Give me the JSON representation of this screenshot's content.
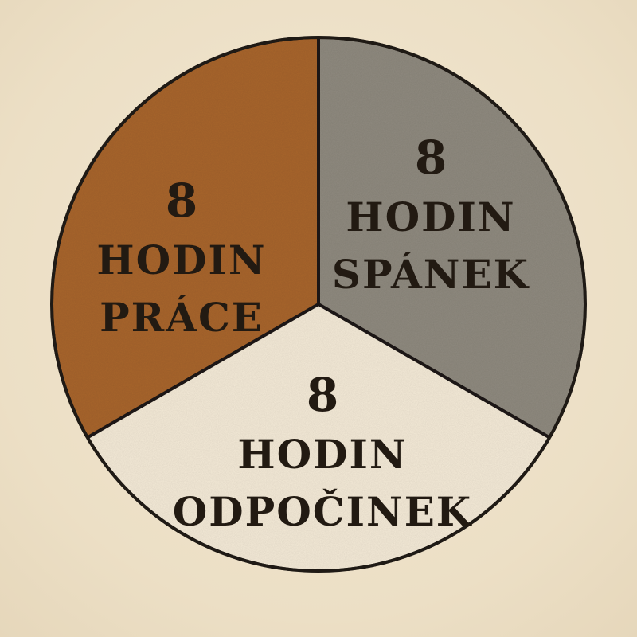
{
  "chart_data": {
    "type": "pie",
    "title": "",
    "slices": [
      {
        "value": 8,
        "unit": "HODIN",
        "label": "PRÁCE",
        "color": "#a8652c"
      },
      {
        "value": 8,
        "unit": "HODIN",
        "label": "SPÁNEK",
        "color": "#8f8a7f"
      },
      {
        "value": 8,
        "unit": "HODIN",
        "label": "ODPOČINEK",
        "color": "#f4ead7"
      }
    ],
    "start_angle_deg": 0,
    "direction": "clockwise",
    "outline_color": "#1f1a15"
  }
}
